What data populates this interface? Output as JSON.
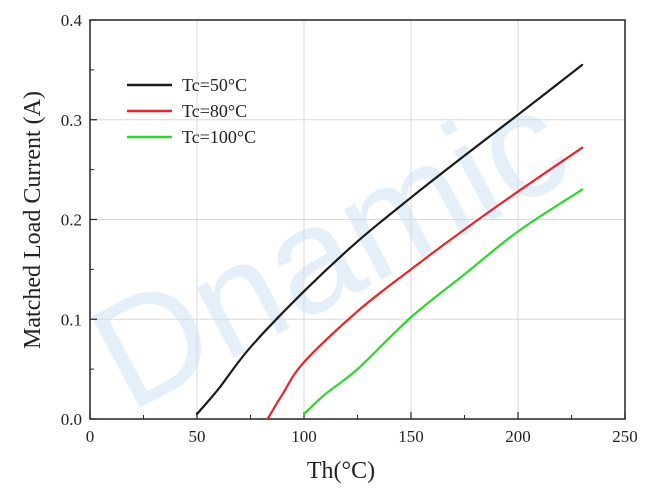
{
  "watermark": "Dnamic",
  "chart_data": {
    "type": "line",
    "xlabel": "Th(°C)",
    "ylabel": "Matched Load Current (A)",
    "xlim": [
      0,
      250
    ],
    "ylim": [
      0,
      0.4
    ],
    "x_ticks": [
      0,
      50,
      100,
      150,
      200,
      250
    ],
    "y_ticks": [
      0.0,
      0.1,
      0.2,
      0.3,
      0.4
    ],
    "x_tick_labels": [
      "0",
      "50",
      "100",
      "150",
      "200",
      "250"
    ],
    "y_tick_labels": [
      "0.0",
      "0.1",
      "0.2",
      "0.3",
      "0.4"
    ],
    "grid": true,
    "legend_position": "top-left",
    "series": [
      {
        "name": "Tc=50°C",
        "color": "#1a1a1a",
        "x": [
          50,
          60,
          75,
          100,
          125,
          150,
          175,
          200,
          230
        ],
        "y": [
          0.005,
          0.03,
          0.072,
          0.128,
          0.178,
          0.222,
          0.264,
          0.305,
          0.355
        ]
      },
      {
        "name": "Tc=80°C",
        "color": "#e8242a",
        "x": [
          83,
          90,
          100,
          125,
          150,
          175,
          200,
          230
        ],
        "y": [
          0.0,
          0.025,
          0.057,
          0.108,
          0.15,
          0.19,
          0.228,
          0.272
        ]
      },
      {
        "name": "Tc=100°C",
        "color": "#2fd62f",
        "x": [
          100,
          110,
          125,
          150,
          175,
          200,
          230
        ],
        "y": [
          0.005,
          0.025,
          0.05,
          0.102,
          0.145,
          0.188,
          0.23
        ]
      }
    ]
  }
}
